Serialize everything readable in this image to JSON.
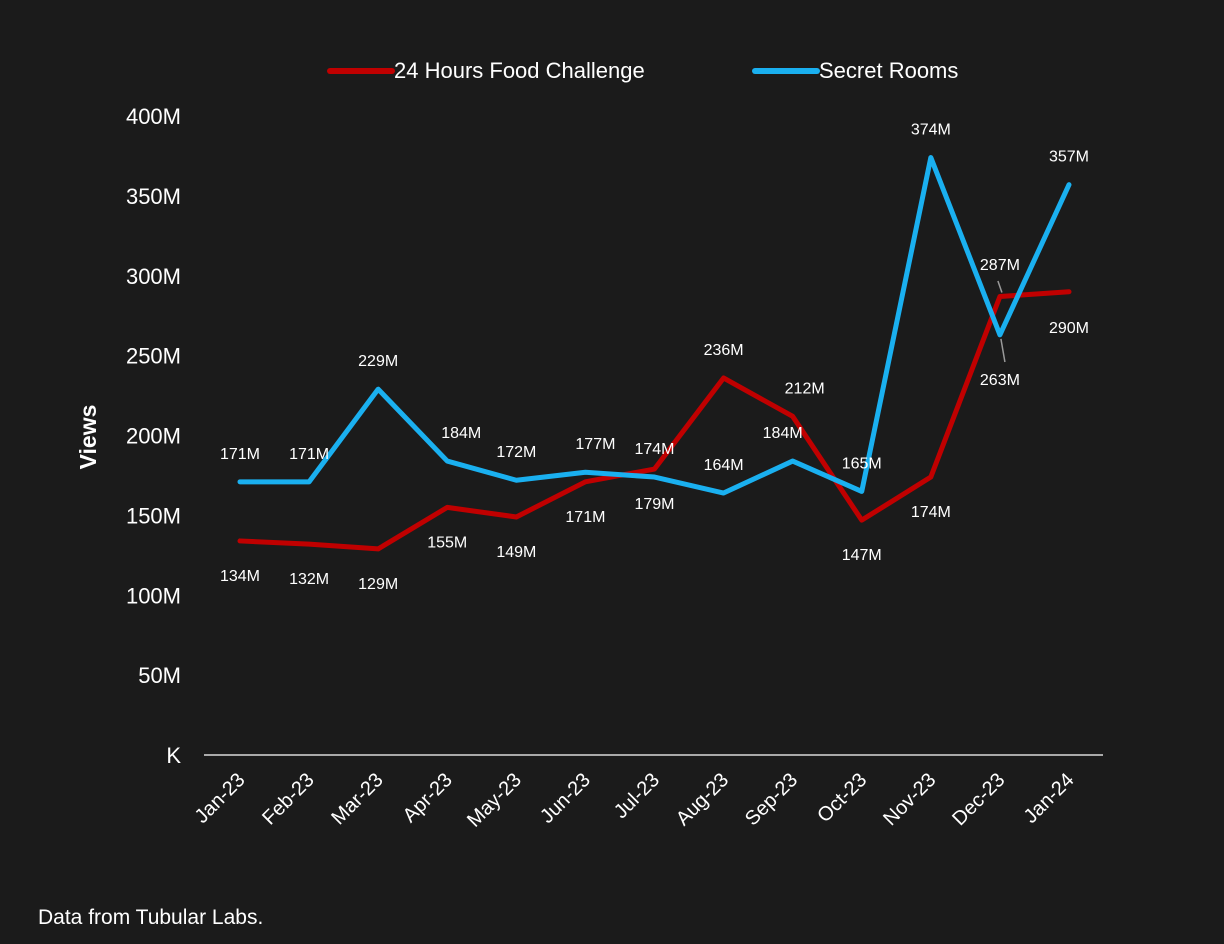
{
  "chart_data": {
    "type": "line",
    "categories": [
      "Jan-23",
      "Feb-23",
      "Mar-23",
      "Apr-23",
      "May-23",
      "Jun-23",
      "Jul-23",
      "Aug-23",
      "Sep-23",
      "Oct-23",
      "Nov-23",
      "Dec-23",
      "Jan-24"
    ],
    "series": [
      {
        "name": "24 Hours Food Challenge",
        "color": "#c00000",
        "values": [
          134,
          132,
          129,
          155,
          149,
          171,
          179,
          236,
          212,
          147,
          174,
          287,
          290
        ],
        "labels": [
          "134M",
          "132M",
          "129M",
          "155M",
          "149M",
          "171M",
          "179M",
          "236M",
          "212M",
          "147M",
          "174M",
          "287M",
          "290M"
        ]
      },
      {
        "name": "Secret Rooms",
        "color": "#1ab0f0",
        "values": [
          171,
          171,
          229,
          184,
          172,
          177,
          174,
          164,
          184,
          165,
          374,
          263,
          357
        ],
        "labels": [
          "171M",
          "171M",
          "229M",
          "184M",
          "172M",
          "177M",
          "174M",
          "164M",
          "184M",
          "165M",
          "374M",
          "263M",
          "357M"
        ]
      }
    ],
    "ylabel": "Views",
    "xlabel": "",
    "ylim": [
      0,
      400
    ],
    "yticks": [
      0,
      50,
      100,
      150,
      200,
      250,
      300,
      350,
      400
    ],
    "ytick_labels": [
      "K",
      "50M",
      "100M",
      "150M",
      "200M",
      "250M",
      "300M",
      "350M",
      "400M"
    ],
    "legend_position": "top-center",
    "grid": false
  },
  "footer": {
    "source": "Data from Tubular Labs."
  }
}
